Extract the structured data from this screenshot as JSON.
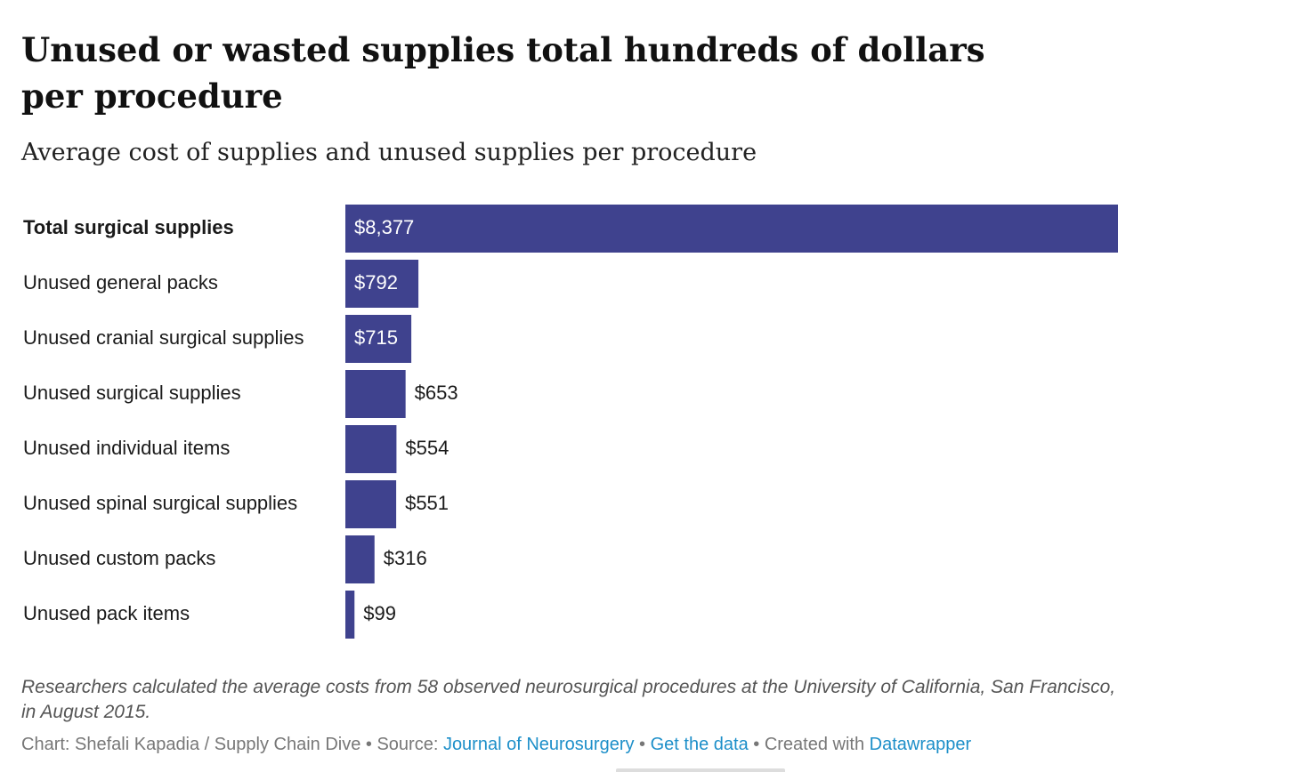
{
  "header": {
    "title": "Unused or wasted supplies total hundreds of dollars per procedure",
    "subtitle": "Average cost of supplies and unused supplies per procedure"
  },
  "chart_data": {
    "type": "bar",
    "orientation": "horizontal",
    "title": "Unused or wasted supplies total hundreds of dollars per procedure",
    "subtitle": "Average cost of supplies and unused supplies per procedure",
    "categories": [
      "Total surgical supplies",
      "Unused general packs",
      "Unused cranial surgical supplies",
      "Unused surgical supplies",
      "Unused individual items",
      "Unused spinal surgical supplies",
      "Unused custom packs",
      "Unused pack items"
    ],
    "values": [
      8377,
      792,
      715,
      653,
      554,
      551,
      316,
      99
    ],
    "value_labels": [
      "$8,377",
      "$792",
      "$715",
      "$653",
      "$554",
      "$551",
      "$316",
      "$99"
    ],
    "emphasized_category": "Total surgical supplies",
    "xlim": [
      0,
      8377
    ],
    "xlabel": "",
    "ylabel": "",
    "grid": false,
    "legend": "none",
    "colors": {
      "bar": "#3f428e",
      "label_inside": "#ffffff",
      "label_outside": "#1a1a1a",
      "category_text": "#1a1a1a"
    }
  },
  "notes": "Researchers calculated the average costs from 58 observed neurosurgical procedures at the University of California, San Francisco, in August 2015.",
  "footer": {
    "chart_credit": "Chart: Shefali Kapadia / Supply Chain Dive",
    "sep1": " • ",
    "source_prefix": "Source: ",
    "source_link": "Journal of Neurosurgery",
    "sep2": " • ",
    "get_data_link": "Get the data",
    "sep3": " • ",
    "created_prefix": "Created with ",
    "datawrapper_link": "Datawrapper",
    "link_color": "#1d8fc9"
  }
}
